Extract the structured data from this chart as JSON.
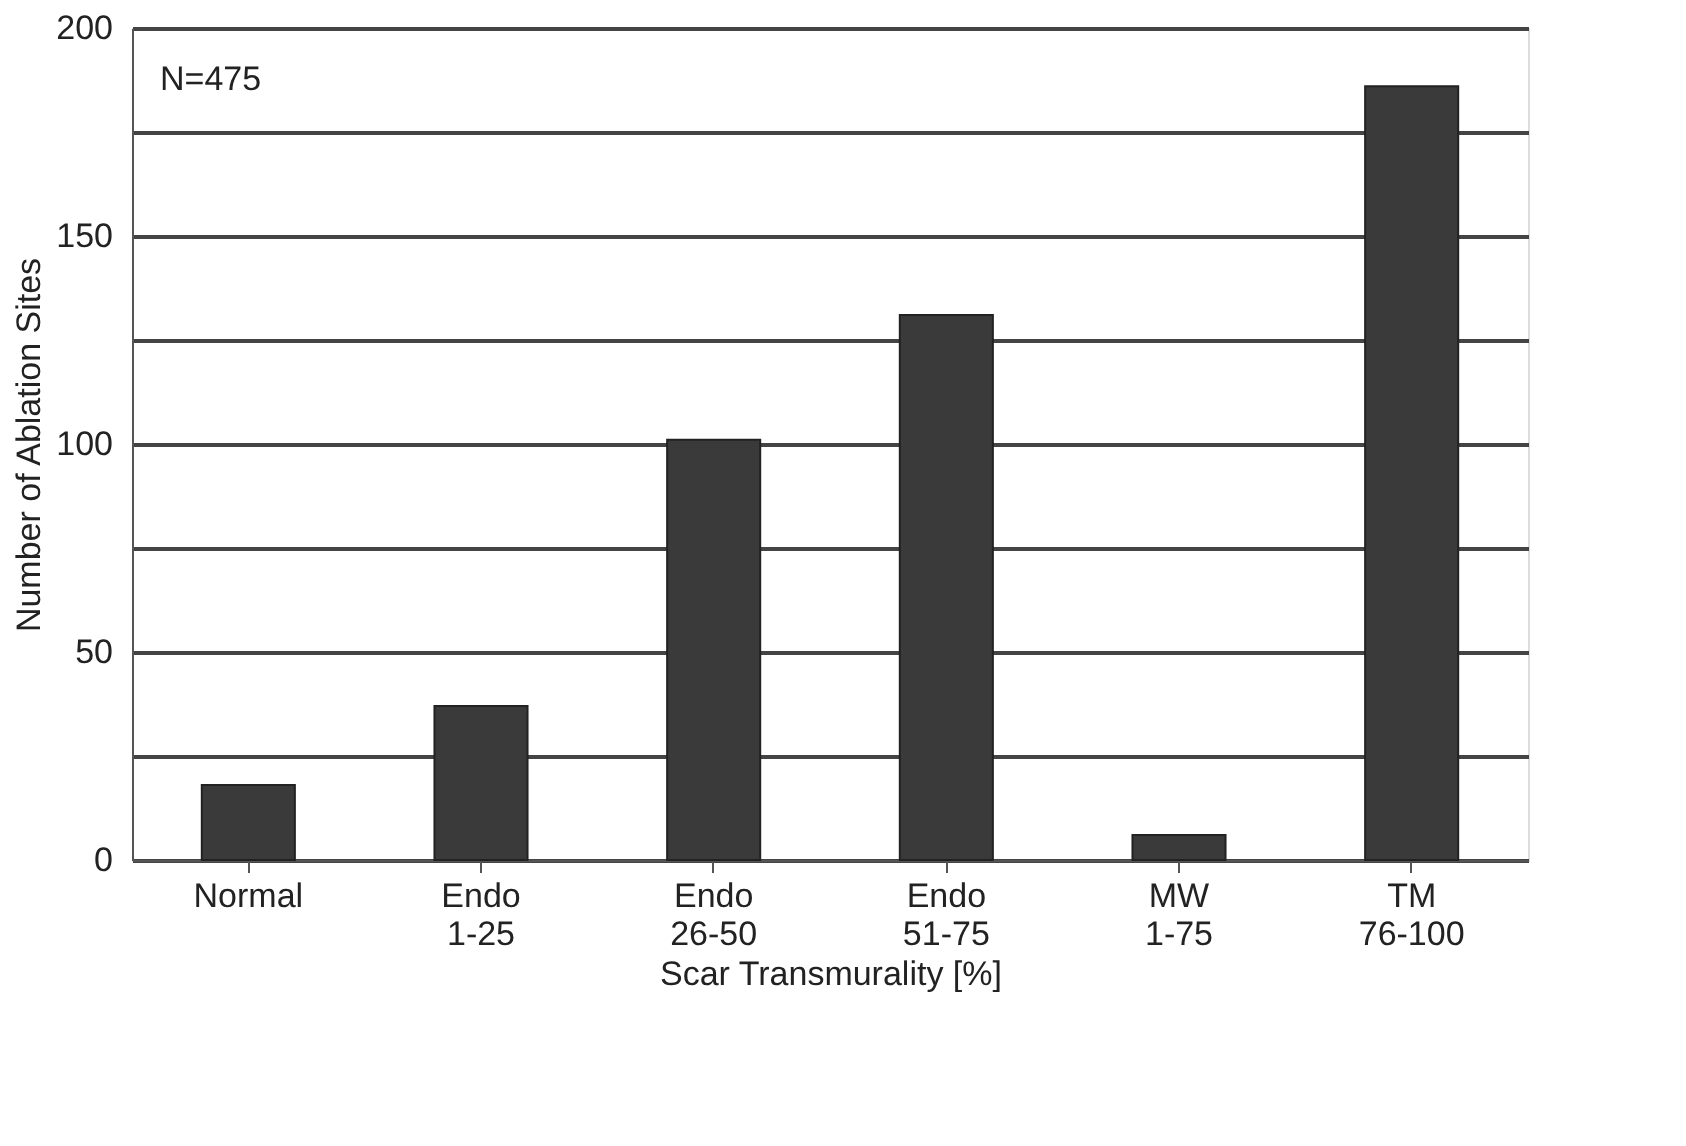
{
  "chart_data": {
    "type": "bar",
    "xlabel": "Scar Transmurality  [%]",
    "ylabel": "Number of Ablation Sites",
    "categories": [
      "Normal",
      "Endo\n1-25",
      "Endo\n26-50",
      "Endo\n51-75",
      "MW\n1-75",
      "TM\n76-100"
    ],
    "values": [
      18,
      37,
      101,
      131,
      6,
      186
    ],
    "color": "#3a3a3a",
    "ylim": [
      0,
      200
    ],
    "yticks": [
      0,
      {
        "value": 25,
        "label": null
      },
      50,
      {
        "value": 75,
        "label": null
      },
      100,
      {
        "value": 125,
        "label": null
      },
      150,
      {
        "value": 175,
        "label": null
      },
      200
    ],
    "grid": "y",
    "annotations": [
      "N=475"
    ]
  }
}
